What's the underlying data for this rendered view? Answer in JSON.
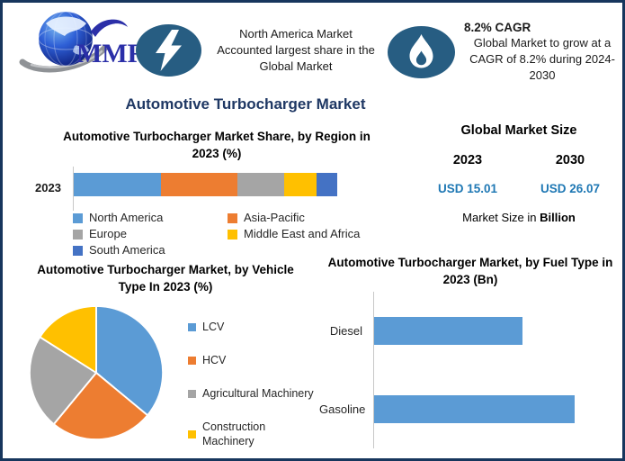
{
  "page": {
    "border_color": "#17365D",
    "background": "#FFFFFF"
  },
  "header": {
    "logo": {
      "text": "MMR",
      "color": "#2B2FA8"
    },
    "callout_left": {
      "icon": "lightning-icon",
      "icon_bg": "#275D82",
      "text": "North America Market Accounted largest share in the Global Market"
    },
    "callout_right": {
      "icon": "flame-icon",
      "icon_bg": "#275D82",
      "title": "8.2% CAGR",
      "text": "Global Market to grow at a CAGR of 8.2% during 2024-2030"
    }
  },
  "main_title": "Automotive Turbocharger Market",
  "market_size": {
    "title": "Global Market Size",
    "years": [
      "2023",
      "2030"
    ],
    "values": [
      "USD 15.01",
      "USD 26.07"
    ],
    "value_color": "#1F78B4",
    "footnote_regular": "Market Size in ",
    "footnote_bold": "Billion"
  },
  "chart_data": [
    {
      "type": "bar",
      "subtype": "stacked-horizontal",
      "title": "Automotive Turbocharger Market Share, by Region in 2023 (%)",
      "categories": [
        "2023"
      ],
      "series": [
        {
          "name": "North America",
          "values": [
            33
          ],
          "color": "#5B9BD5"
        },
        {
          "name": "Asia-Pacific",
          "values": [
            29
          ],
          "color": "#ED7D31"
        },
        {
          "name": "Europe",
          "values": [
            18
          ],
          "color": "#A5A5A5"
        },
        {
          "name": "Middle East and Africa",
          "values": [
            12
          ],
          "color": "#FFC000"
        },
        {
          "name": "South America",
          "values": [
            8
          ],
          "color": "#4472C4"
        }
      ],
      "xlim": [
        0,
        100
      ],
      "grid": false,
      "legend_position": "bottom"
    },
    {
      "type": "pie",
      "title": "Automotive Turbocharger Market, by Vehicle Type In 2023 (%)",
      "labels": [
        "LCV",
        "HCV",
        "Agricultural Machinery",
        "Construction Machinery"
      ],
      "values": [
        36,
        25,
        23,
        16
      ],
      "colors": [
        "#5B9BD5",
        "#ED7D31",
        "#A5A5A5",
        "#FFC000"
      ],
      "start_angle_deg": 0,
      "direction": "clockwise",
      "legend_position": "right"
    },
    {
      "type": "bar",
      "subtype": "horizontal",
      "title": "Automotive Turbocharger Market, by Fuel Type in 2023 (Bn)",
      "categories": [
        "Diesel",
        "Gasoline"
      ],
      "values": [
        6.4,
        8.6
      ],
      "value_note": "axis unlabeled; values estimated from bar lengths (Diesel ~75% of Gasoline)",
      "xlim": [
        0,
        10
      ],
      "bar_color": "#5B9BD5",
      "grid": false
    }
  ]
}
